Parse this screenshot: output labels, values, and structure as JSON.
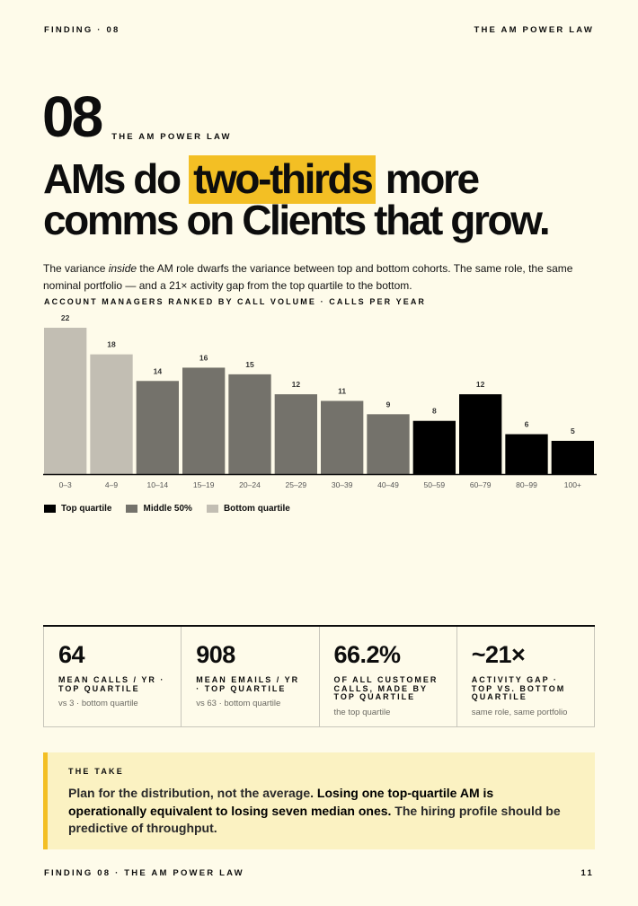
{
  "header": {
    "left": "FINDING · 08",
    "right": "THE AM POWER LAW"
  },
  "finding": {
    "number": "08",
    "kicker": "THE AM POWER LAW"
  },
  "headline": {
    "line1_pre": "AMs do ",
    "line1_highlight": "two-thirds",
    "line1_post": " more",
    "line2": "comms on Clients that grow."
  },
  "lede": {
    "part1": "The variance ",
    "emph": "inside",
    "part2": " the AM role dwarfs the variance between top and bottom cohorts. The same role, the same nominal portfolio — and a 21× activity gap from the top quartile to the bottom."
  },
  "chart_kicker": "ACCOUNT MANAGERS RANKED BY CALL VOLUME · CALLS PER YEAR",
  "chart_data": {
    "type": "bar",
    "categories": [
      "0–3",
      "4–9",
      "10–14",
      "15–19",
      "20–24",
      "25–29",
      "30–39",
      "40–49",
      "50–59",
      "60–79",
      "80–99",
      "100+"
    ],
    "values": [
      22,
      18,
      14,
      16,
      15,
      12,
      11,
      9,
      8,
      12,
      6,
      5
    ],
    "groups": [
      "bottom",
      "bottom",
      "middle",
      "middle",
      "middle",
      "middle",
      "middle",
      "middle",
      "top",
      "top",
      "top",
      "top"
    ],
    "ylim": [
      0,
      22
    ],
    "grid": false,
    "colors": {
      "top": "#000000",
      "middle": "#74726b",
      "bottom": "#c2beb3"
    },
    "legend": [
      {
        "label": "Top quartile",
        "group": "top"
      },
      {
        "label": "Middle 50%",
        "group": "middle"
      },
      {
        "label": "Bottom quartile",
        "group": "bottom"
      }
    ]
  },
  "stats": [
    {
      "value": "64",
      "label": "MEAN CALLS / YR · TOP QUARTILE",
      "sub": "vs 3 · bottom quartile"
    },
    {
      "value": "908",
      "label": "MEAN EMAILS / YR · TOP QUARTILE",
      "sub": "vs 63 · bottom quartile"
    },
    {
      "value": "66.2%",
      "label": "OF ALL CUSTOMER CALLS, MADE BY TOP QUARTILE",
      "sub": "the top quartile"
    },
    {
      "value": "~21×",
      "label": "ACTIVITY GAP · TOP VS. BOTTOM QUARTILE",
      "sub": "same role, same portfolio"
    }
  ],
  "take": {
    "kicker": "THE TAKE",
    "part1": "Plan for the distribution, not the average. ",
    "part2": "Losing one top-quartile AM is operationally equivalent to losing seven median ones.",
    "part3": " The hiring profile should be predictive of throughput."
  },
  "footer": {
    "left": "FINDING 08 · THE AM POWER LAW",
    "right": "11"
  }
}
